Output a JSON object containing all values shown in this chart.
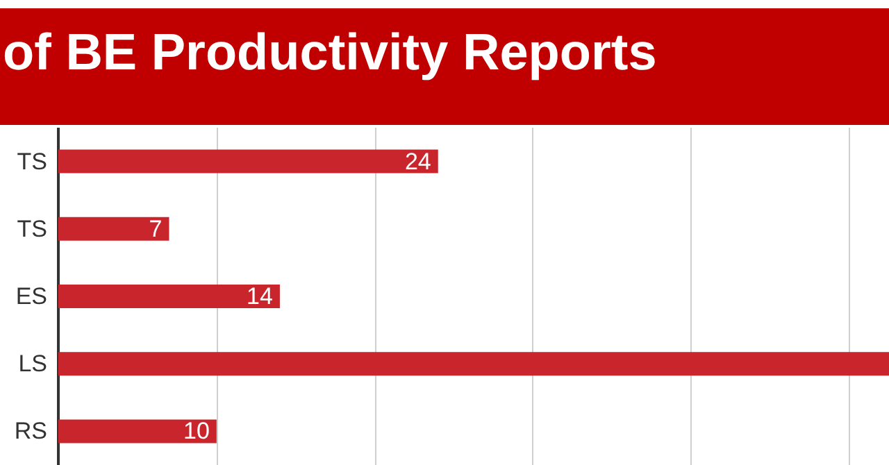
{
  "chart_data": {
    "type": "bar",
    "title": "of BE Productivity Reports",
    "orientation": "horizontal",
    "categories": [
      "TS",
      "TS",
      "ES",
      "LS",
      "RS"
    ],
    "values": [
      24,
      7,
      14,
      52.5,
      10
    ],
    "value_labels": [
      "24",
      "7",
      "14",
      null,
      "10"
    ],
    "color": "#c9252c",
    "xlim": [
      0,
      52.5
    ],
    "xticks": [
      {
        "value": 10,
        "label": null
      },
      {
        "value": 20,
        "label": null
      },
      {
        "value": 30,
        "label": null
      },
      {
        "value": 40,
        "label": null
      },
      {
        "value": 50,
        "label": null
      }
    ],
    "grid": "x",
    "tick_labels": "y"
  }
}
